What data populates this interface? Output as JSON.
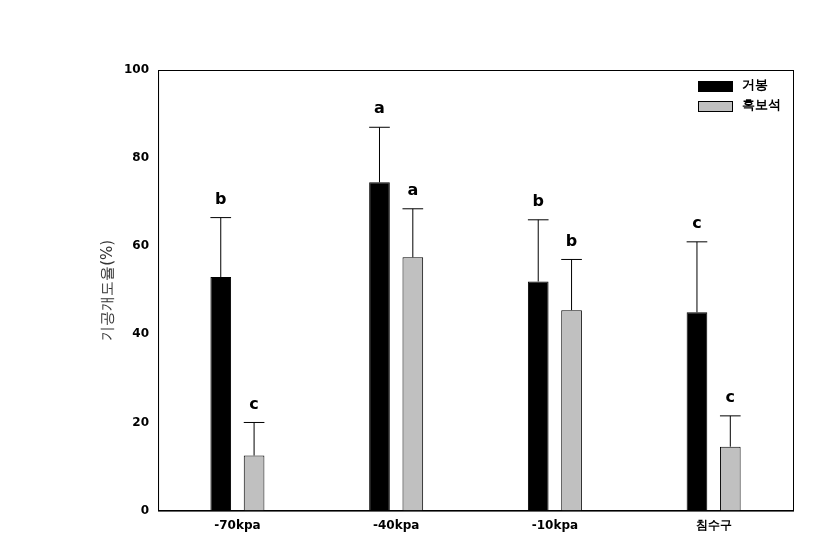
{
  "chart_data": {
    "type": "bar",
    "y_label": "기공개도율(%)",
    "categories": [
      "-70kpa",
      "-40kpa",
      "-10kpa",
      "침수구"
    ],
    "series": [
      {
        "name": "거봉",
        "color": "#000000",
        "values": [
          53,
          74.5,
          52,
          45
        ],
        "errors": [
          13.5,
          12.5,
          14,
          16
        ],
        "letters": [
          "b",
          "a",
          "b",
          "c"
        ]
      },
      {
        "name": "흑보석",
        "color": "#c0c0c0",
        "values": [
          12.5,
          57.5,
          45.5,
          14.5
        ],
        "errors": [
          7.5,
          11,
          11.5,
          7
        ],
        "letters": [
          "c",
          "a",
          "b",
          "c"
        ]
      }
    ],
    "ylim": [
      0,
      100
    ],
    "yticks": [
      0,
      20,
      40,
      60,
      80,
      100
    ],
    "grid": false,
    "legend": "upper right"
  }
}
